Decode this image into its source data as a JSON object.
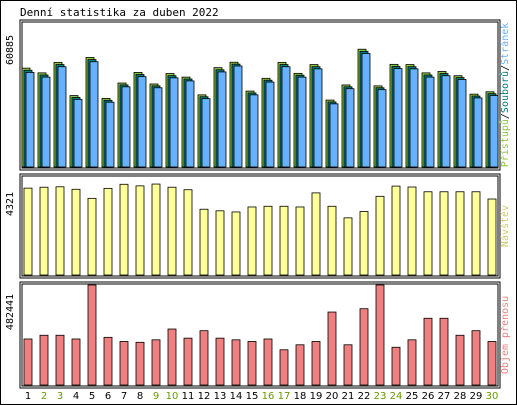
{
  "chart_data": {
    "type": "bar",
    "title": "Denní statistika za duben 2022",
    "categories": [
      "1",
      "2",
      "3",
      "4",
      "5",
      "6",
      "7",
      "8",
      "9",
      "10",
      "11",
      "12",
      "13",
      "14",
      "15",
      "16",
      "17",
      "18",
      "19",
      "20",
      "21",
      "22",
      "23",
      "24",
      "25",
      "26",
      "27",
      "28",
      "29",
      "30"
    ],
    "weekend_categories": [
      "2",
      "3",
      "9",
      "10",
      "16",
      "17",
      "23",
      "24",
      "30"
    ],
    "colors": {
      "bg": "#ffffff",
      "border": "#000000",
      "hits": "#8dc63f",
      "files": "#008080",
      "pages": "#66b2ff",
      "visits": "#ffff99",
      "kbytes": "#f08080",
      "weekday_label": "#000000",
      "weekend_label": "#669900"
    },
    "panels": [
      {
        "id": "requests",
        "scale_label": "60885",
        "ylim": [
          0,
          60885
        ],
        "side_legend": [
          {
            "text": "Přístupů",
            "color": "#8dc63f"
          },
          {
            "text": "/",
            "color": "#000000"
          },
          {
            "text": "Souborů",
            "color": "#008080"
          },
          {
            "text": "/",
            "color": "#000000"
          },
          {
            "text": "Stránek",
            "color": "#66b2ff"
          }
        ],
        "series": [
          {
            "name": "Přístupů",
            "color": "#8dc63f",
            "values": [
              41800,
              39800,
              44200,
              30200,
              46300,
              29000,
              35500,
              40000,
              35100,
              39500,
              38000,
              30500,
              42000,
              44300,
              32100,
              37500,
              44200,
              39600,
              43300,
              28300,
              34700,
              49800,
              34300,
              43400,
              43300,
              39800,
              40400,
              38600,
              30800,
              31800
            ]
          },
          {
            "name": "Souborů",
            "color": "#008080",
            "values": [
              40900,
              38900,
              43300,
              29400,
              45400,
              28200,
              34700,
              39100,
              34300,
              38600,
              37200,
              29700,
              41100,
              43500,
              31300,
              36700,
              43300,
              38800,
              42400,
              27500,
              33900,
              48900,
              33500,
              42500,
              42400,
              38900,
              39500,
              37800,
              30000,
              31000
            ]
          },
          {
            "name": "Stránek",
            "color": "#66b2ff",
            "values": [
              40000,
              38000,
              42400,
              28600,
              44500,
              27400,
              33900,
              38200,
              33500,
              37700,
              36400,
              28900,
              40200,
              42700,
              30500,
              35900,
              42400,
              38000,
              41500,
              26700,
              33100,
              48000,
              32700,
              41600,
              41500,
              38000,
              38600,
              37000,
              29200,
              30200
            ]
          }
        ]
      },
      {
        "id": "visits",
        "scale_label": "4321",
        "ylim": [
          0,
          4321
        ],
        "side_legend": [
          {
            "text": "Návštěv",
            "color": "#cccc66"
          }
        ],
        "series": [
          {
            "name": "Návštěv",
            "color": "#ffff99",
            "values": [
              3830,
              3870,
              3890,
              3780,
              3380,
              3820,
              4000,
              3930,
              4010,
              3870,
              3760,
              2900,
              2830,
              2780,
              3000,
              3030,
              3030,
              3000,
              3620,
              3030,
              2520,
              2800,
              3470,
              3920,
              3880,
              3670,
              3670,
              3670,
              3670,
              3350
            ]
          }
        ]
      },
      {
        "id": "kbytes",
        "scale_label": "482441",
        "ylim": [
          0,
          482441
        ],
        "side_legend": [
          {
            "text": "Objem přenosu",
            "color": "#f08080"
          }
        ],
        "series": [
          {
            "name": "Objem přenosu",
            "color": "#f08080",
            "values": [
              222000,
              240000,
              240000,
              222000,
              482441,
              230000,
              210000,
              206000,
              218000,
              270000,
              226000,
              262000,
              226000,
              218000,
              210000,
              222000,
              170000,
              194000,
              210000,
              352000,
              194000,
              368000,
              482441,
              182000,
              218000,
              322000,
              322000,
              240000,
              262000,
              210000
            ]
          }
        ]
      }
    ]
  }
}
